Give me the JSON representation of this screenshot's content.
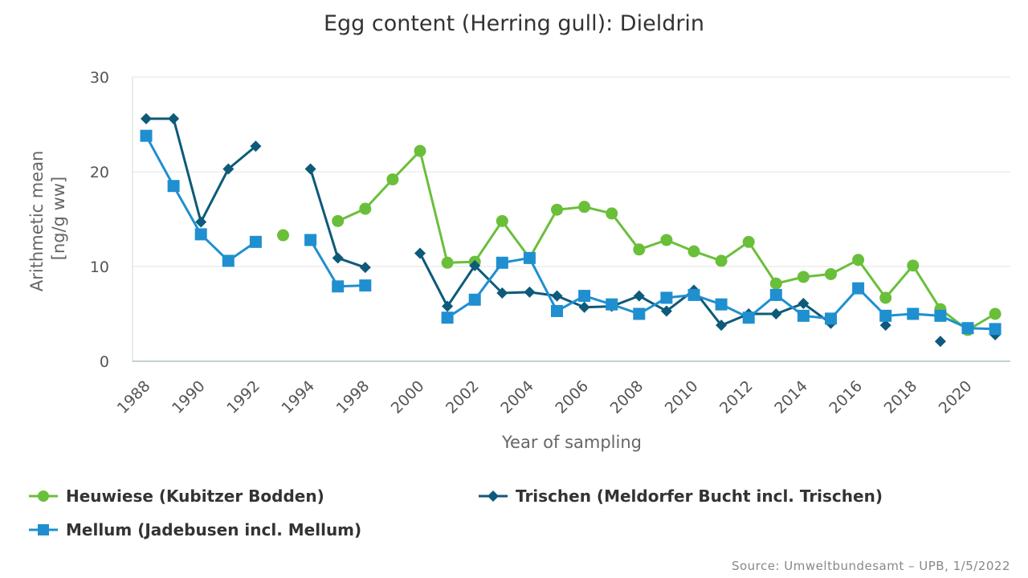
{
  "chart_data": {
    "type": "line",
    "title": "Egg content (Herring gull): Dieldrin",
    "xlabel": "Year of sampling",
    "ylabel": [
      "Arithmetic mean",
      "[ng/g ww]"
    ],
    "ylim": [
      0,
      30
    ],
    "yticks": [
      0,
      10,
      20,
      30
    ],
    "x": [
      1988,
      1989,
      1990,
      1991,
      1992,
      1993,
      1994,
      1996,
      1998,
      1999,
      2000,
      2001,
      2002,
      2003,
      2004,
      2005,
      2006,
      2007,
      2008,
      2009,
      2010,
      2011,
      2012,
      2013,
      2014,
      2015,
      2016,
      2017,
      2018,
      2019,
      2020,
      2021
    ],
    "x_tick_labels": [
      "1988",
      "",
      "1990",
      "",
      "1992",
      "",
      "1994",
      "",
      "1998",
      "",
      "2000",
      "",
      "2002",
      "",
      "2004",
      "",
      "2006",
      "",
      "2008",
      "",
      "2010",
      "",
      "2012",
      "",
      "2014",
      "",
      "2016",
      "",
      "2018",
      "",
      "2020",
      ""
    ],
    "grid": true,
    "legend_position": "bottom",
    "series": [
      {
        "name": "Heuwiese (Kubitzer Bodden)",
        "color": "#6abf3a",
        "marker": "circle",
        "values": [
          null,
          null,
          null,
          null,
          null,
          13.3,
          null,
          14.8,
          16.1,
          19.2,
          22.2,
          10.4,
          10.5,
          14.8,
          10.9,
          16.0,
          16.3,
          15.6,
          11.8,
          12.8,
          11.6,
          10.6,
          12.6,
          8.2,
          8.9,
          9.2,
          10.7,
          6.7,
          10.1,
          5.5,
          3.3,
          5.0
        ]
      },
      {
        "name": "Trischen (Meldorfer Bucht incl. Trischen)",
        "color": "#0d5a7a",
        "marker": "diamond",
        "values": [
          25.6,
          25.6,
          14.7,
          20.3,
          22.7,
          null,
          20.3,
          10.9,
          9.9,
          null,
          11.4,
          5.8,
          10.1,
          7.2,
          7.3,
          6.9,
          5.7,
          5.8,
          6.9,
          5.3,
          7.5,
          3.8,
          5.0,
          5.0,
          6.1,
          4.0,
          null,
          3.8,
          null,
          2.1,
          null,
          2.8
        ]
      },
      {
        "name": "Mellum (Jadebusen incl. Mellum)",
        "color": "#1f8fd0",
        "marker": "square",
        "values": [
          23.8,
          18.5,
          13.4,
          10.6,
          12.6,
          null,
          12.8,
          7.9,
          8.0,
          null,
          null,
          4.6,
          6.5,
          10.4,
          10.9,
          5.3,
          6.9,
          6.0,
          5.0,
          6.7,
          7.0,
          6.0,
          4.6,
          7.0,
          4.8,
          4.5,
          7.7,
          4.8,
          5.0,
          4.8,
          3.5,
          3.4
        ]
      }
    ]
  },
  "source": "Source: Umweltbundesamt – UPB, 1/5/2022"
}
